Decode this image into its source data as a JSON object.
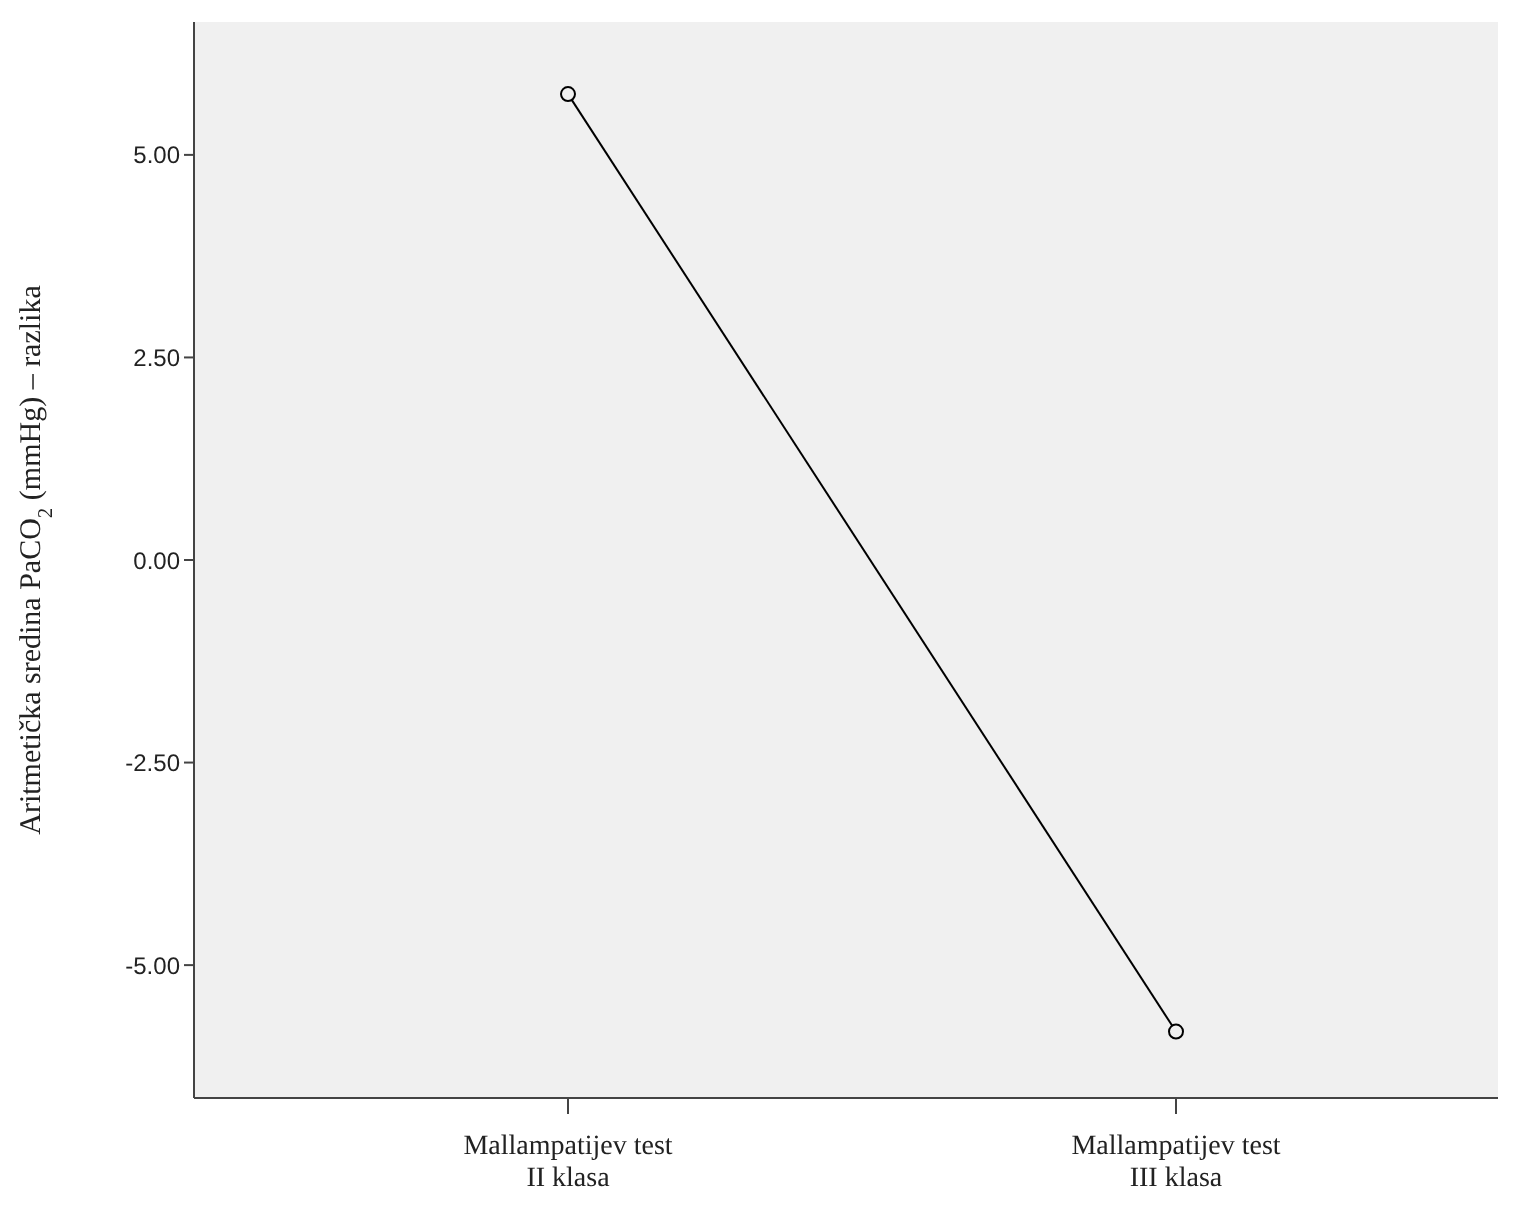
{
  "chart_data": {
    "type": "line",
    "ylabel": "Aritmetička sredina PaCO$_{2}$ (mmHg) – razlika",
    "categories": [
      "Mallampatijev test\nII klasa",
      "Mallampatijev test\nIII klasa"
    ],
    "series": [
      {
        "color": "#000000",
        "values": [
          5.75,
          -5.82
        ]
      }
    ],
    "ylim": [
      -6.64,
      6.64
    ],
    "yticks": [
      {
        "value": 5,
        "label": "5.00"
      },
      {
        "value": 2.5,
        "label": "2.50"
      },
      {
        "value": 0,
        "label": "0.00"
      },
      {
        "value": -2.5,
        "label": "-2.50"
      },
      {
        "value": -5,
        "label": "-5.00"
      }
    ],
    "grid": false,
    "marker": "circle",
    "line_style": "solid"
  }
}
